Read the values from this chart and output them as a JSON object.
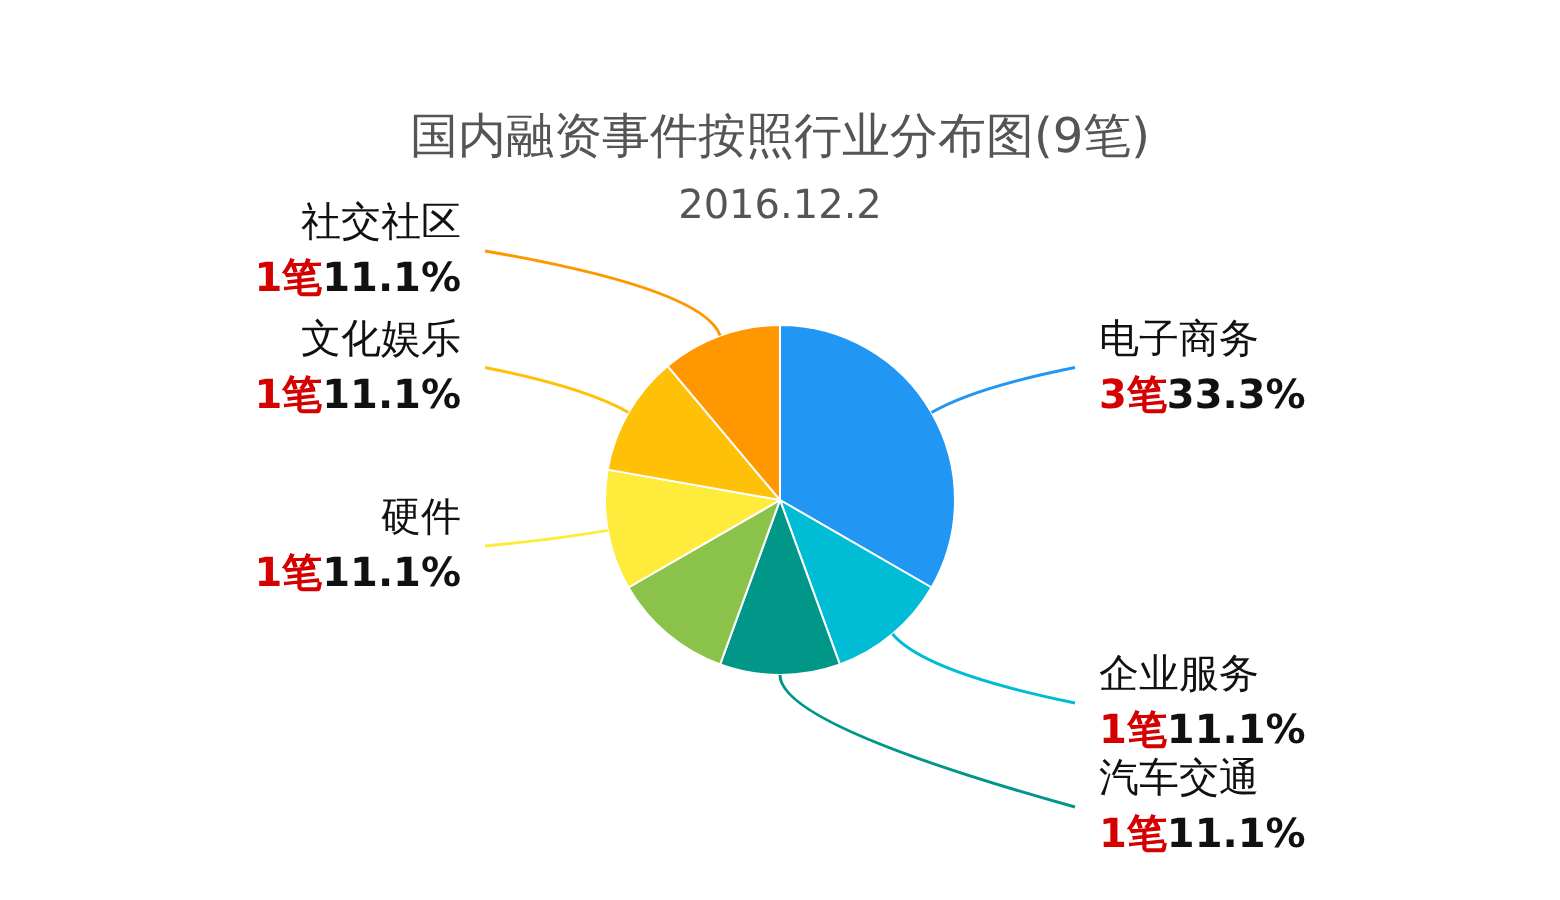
{
  "chart_data": {
    "type": "pie",
    "title": "国内融资事件按照行业分布图(9笔)",
    "subtitle": "2016.12.2",
    "categories": [
      "电子商务",
      "企业服务",
      "汽车交通",
      null,
      "硬件",
      "文化娱乐",
      "社交社区"
    ],
    "values": [
      3,
      1,
      1,
      1,
      1,
      1,
      1
    ],
    "colors": [
      "#2196f3",
      "#00bcd4",
      "#009688",
      "#8bc34a",
      "#ffeb3b",
      "#ffc107",
      "#ff9800"
    ],
    "value_labels": [
      "3笔33.3%",
      "1笔11.1%",
      "1笔11.1%",
      null,
      "1笔11.1%",
      "1笔11.1%",
      "1笔11.1%"
    ],
    "legend": false
  }
}
